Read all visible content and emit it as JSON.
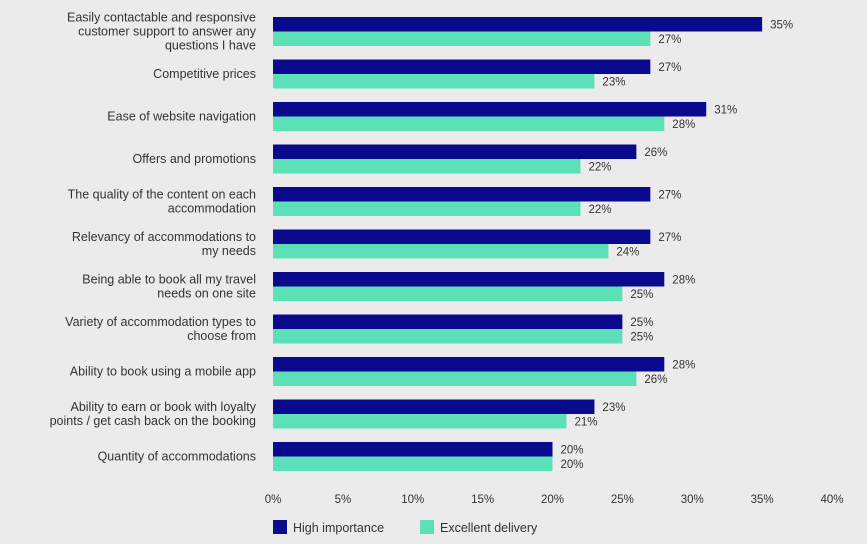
{
  "chart_data": {
    "type": "bar",
    "orientation": "horizontal",
    "categories": [
      [
        "Easily contactable and responsive",
        "customer support to answer any",
        "questions I have"
      ],
      [
        "Competitive prices"
      ],
      [
        "Ease of website navigation"
      ],
      [
        "Offers and promotions"
      ],
      [
        "The quality of the content on each",
        "accommodation"
      ],
      [
        "Relevancy of accommodations to",
        "my needs"
      ],
      [
        "Being able to book all my travel",
        "needs on one site"
      ],
      [
        "Variety of accommodation types to",
        "choose from"
      ],
      [
        "Ability to book using a mobile app"
      ],
      [
        "Ability to earn or book with loyalty",
        "points / get cash back on the booking"
      ],
      [
        "Quantity of accommodations"
      ]
    ],
    "series": [
      {
        "name": "High importance",
        "color": "#0a0a8c",
        "values": [
          35,
          27,
          31,
          26,
          27,
          27,
          28,
          25,
          28,
          23,
          20
        ],
        "labels": [
          "35%",
          "27%",
          "31%",
          "26%",
          "27%",
          "27%",
          "28%",
          "25%",
          "28%",
          "23%",
          "20%"
        ]
      },
      {
        "name": "Excellent delivery",
        "color": "#5ce0b8",
        "values": [
          27,
          23,
          28,
          22,
          22,
          24,
          25,
          25,
          26,
          21,
          20
        ],
        "labels": [
          "27%",
          "23%",
          "28%",
          "22%",
          "22%",
          "24%",
          "25%",
          "25%",
          "26%",
          "21%",
          "20%"
        ]
      }
    ],
    "x_ticks": [
      "0%",
      "5%",
      "10%",
      "15%",
      "20%",
      "25%",
      "30%",
      "35%",
      "40%"
    ],
    "xlim": [
      0,
      40
    ],
    "grid": false,
    "legend_position": "bottom-left",
    "title": "",
    "xlabel": "",
    "ylabel": ""
  }
}
